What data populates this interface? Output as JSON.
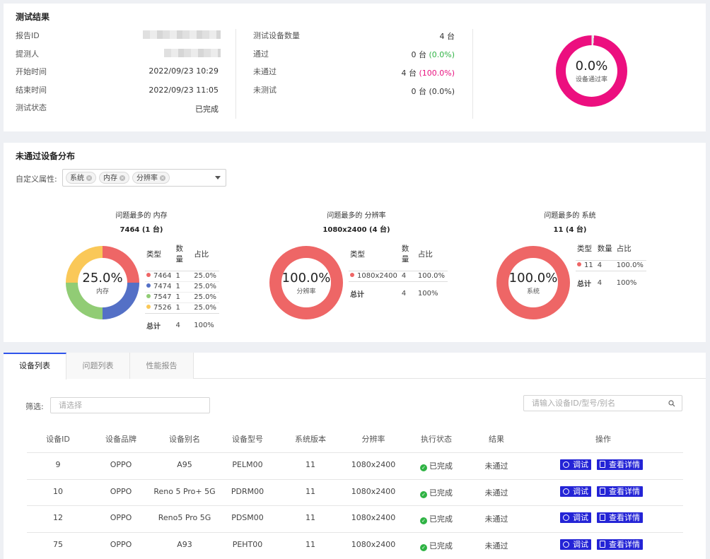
{
  "summary": {
    "title": "测试结果",
    "fields": [
      {
        "label": "报告ID",
        "value": ""
      },
      {
        "label": "提测人",
        "value": ""
      },
      {
        "label": "开始时间",
        "value": "2022/09/23 10:29"
      },
      {
        "label": "结束时间",
        "value": "2022/09/23 11:05"
      },
      {
        "label": "测试状态",
        "value": "已完成"
      }
    ],
    "counts": [
      {
        "label": "测试设备数量",
        "value": "4 台",
        "pct": ""
      },
      {
        "label": "通过",
        "value": "0 台",
        "pct": "(0.0%)"
      },
      {
        "label": "未通过",
        "value": "4 台",
        "pct": "(100.0%)"
      },
      {
        "label": "未测试",
        "value": "0 台",
        "pct": "(0.0%)"
      }
    ],
    "pass_rate": {
      "value": "0.0%",
      "label": "设备通过率",
      "fraction": 0.0,
      "color": "#ec0f7f",
      "track": "#e8e8e8"
    }
  },
  "distribution": {
    "title": "未通过设备分布",
    "filter_label": "自定义属性:",
    "tags": [
      "系统",
      "内存",
      "分辨率"
    ],
    "headers": {
      "type": "类型",
      "count": "数量",
      "ratio": "占比"
    },
    "total_label": "总计",
    "charts": [
      {
        "title": "问题最多的 内存",
        "subtitle": "7464 (1 台)",
        "center_value": "25.0%",
        "center_label": "内存",
        "rows": [
          {
            "type": "7464",
            "count": "1",
            "ratio": "25.0%",
            "color": "#ee6666",
            "share": 0.25
          },
          {
            "type": "7474",
            "count": "1",
            "ratio": "25.0%",
            "color": "#5470c6",
            "share": 0.25
          },
          {
            "type": "7547",
            "count": "1",
            "ratio": "25.0%",
            "color": "#91cc75",
            "share": 0.25
          },
          {
            "type": "7526",
            "count": "1",
            "ratio": "25.0%",
            "color": "#fac858",
            "share": 0.25
          }
        ],
        "total_count": "4",
        "total_ratio": "100%"
      },
      {
        "title": "问题最多的 分辨率",
        "subtitle": "1080x2400 (4 台)",
        "center_value": "100.0%",
        "center_label": "分辨率",
        "rows": [
          {
            "type": "1080x2400",
            "count": "4",
            "ratio": "100.0%",
            "color": "#ee6666",
            "share": 1.0
          }
        ],
        "total_count": "4",
        "total_ratio": "100%"
      },
      {
        "title": "问题最多的 系统",
        "subtitle": "11 (4 台)",
        "center_value": "100.0%",
        "center_label": "系统",
        "rows": [
          {
            "type": "11",
            "count": "4",
            "ratio": "100.0%",
            "color": "#ee6666",
            "share": 1.0
          }
        ],
        "total_count": "4",
        "total_ratio": "100%"
      }
    ]
  },
  "tabs": [
    "设备列表",
    "问题列表",
    "性能报告"
  ],
  "list": {
    "filter_label": "筛选:",
    "filter_placeholder": "请选择",
    "search_placeholder": "请输入设备ID/型号/别名",
    "columns": [
      "设备ID",
      "设备品牌",
      "设备别名",
      "设备型号",
      "系统版本",
      "分辨率",
      "执行状态",
      "结果",
      "操作"
    ],
    "rows": [
      {
        "id": "9",
        "brand": "OPPO",
        "alias": "A95",
        "model": "PELM00",
        "os": "11",
        "res": "1080x2400",
        "status": "已完成",
        "result": "未通过"
      },
      {
        "id": "10",
        "brand": "OPPO",
        "alias": "Reno 5 Pro+ 5G",
        "model": "PDRM00",
        "os": "11",
        "res": "1080x2400",
        "status": "已完成",
        "result": "未通过"
      },
      {
        "id": "12",
        "brand": "OPPO",
        "alias": "Reno5 Pro 5G",
        "model": "PDSM00",
        "os": "11",
        "res": "1080x2400",
        "status": "已完成",
        "result": "未通过"
      },
      {
        "id": "75",
        "brand": "OPPO",
        "alias": "A93",
        "model": "PEHT00",
        "os": "11",
        "res": "1080x2400",
        "status": "已完成",
        "result": "未通过"
      }
    ],
    "actions": {
      "debug": "调试",
      "detail": "查看详情"
    },
    "icons": {
      "debug": "play-circle-icon",
      "detail": "document-icon",
      "status": "check-circle-icon",
      "search": "search-icon"
    }
  }
}
